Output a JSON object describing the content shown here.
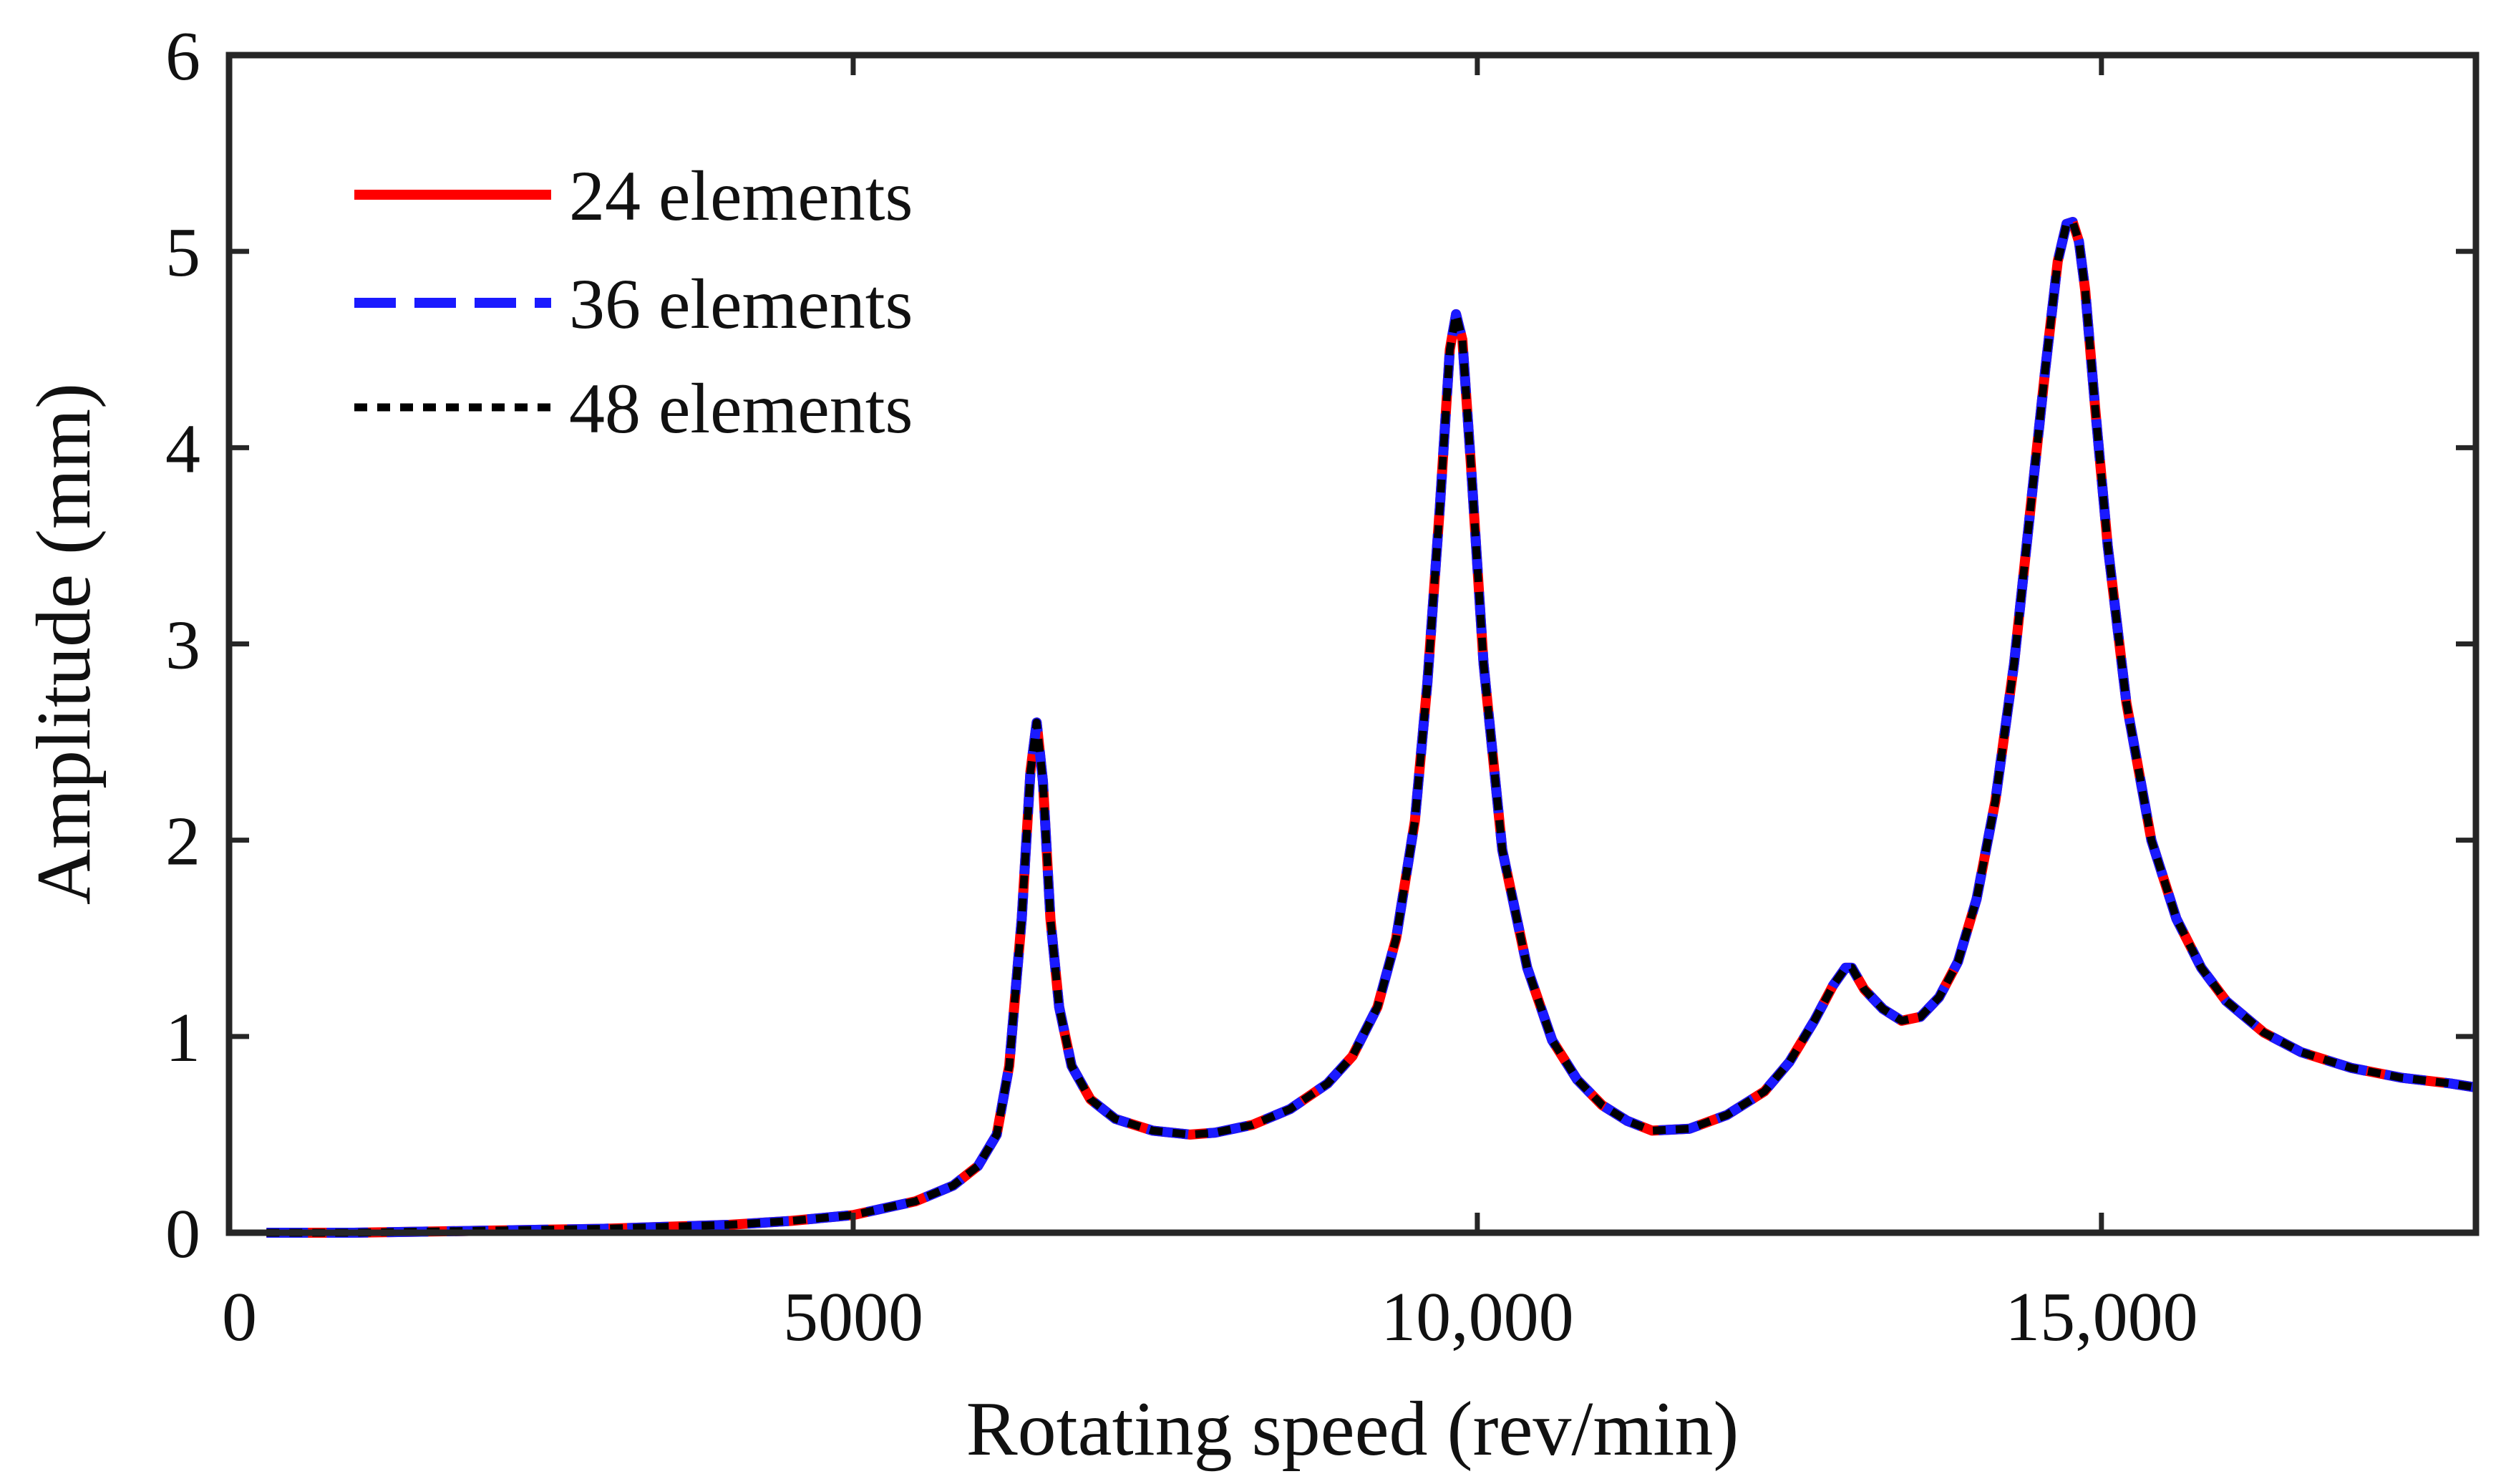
{
  "chart_data": {
    "type": "line",
    "title": "",
    "xlabel": "Rotating speed (rev/min)",
    "ylabel": "Amplitude (mm)",
    "xlim": [
      0,
      18000
    ],
    "ylim": [
      0,
      6
    ],
    "grid": false,
    "legend_position": "top-left",
    "xticks": [
      0,
      5000,
      10000,
      15000
    ],
    "xtick_labels": [
      "0",
      "5000",
      "10,000",
      "15,000"
    ],
    "yticks": [
      0,
      1,
      2,
      3,
      4,
      5,
      6
    ],
    "ytick_labels": [
      "0",
      "1",
      "2",
      "3",
      "4",
      "5",
      "6"
    ],
    "x": [
      300,
      1000,
      2000,
      3000,
      4000,
      4500,
      5000,
      5500,
      5800,
      6000,
      6150,
      6250,
      6350,
      6420,
      6470,
      6520,
      6580,
      6650,
      6750,
      6900,
      7100,
      7400,
      7700,
      7900,
      8200,
      8500,
      8800,
      9000,
      9200,
      9350,
      9500,
      9600,
      9700,
      9780,
      9830,
      9880,
      9950,
      10050,
      10200,
      10400,
      10600,
      10800,
      11000,
      11200,
      11400,
      11700,
      12000,
      12300,
      12500,
      12700,
      12850,
      12950,
      13000,
      13100,
      13250,
      13400,
      13550,
      13700,
      13850,
      14000,
      14150,
      14300,
      14450,
      14550,
      14650,
      14720,
      14770,
      14820,
      14870,
      14950,
      15050,
      15200,
      15400,
      15600,
      15800,
      16000,
      16300,
      16600,
      17000,
      17400,
      17800,
      18000
    ],
    "series": [
      {
        "name": "24 elements",
        "color": "#ff0000",
        "dash": "solid",
        "values": [
          0.0,
          0.0,
          0.01,
          0.02,
          0.04,
          0.06,
          0.09,
          0.16,
          0.24,
          0.34,
          0.5,
          0.85,
          1.6,
          2.35,
          2.6,
          2.3,
          1.6,
          1.15,
          0.85,
          0.68,
          0.58,
          0.52,
          0.5,
          0.51,
          0.55,
          0.63,
          0.76,
          0.9,
          1.15,
          1.5,
          2.1,
          2.8,
          3.7,
          4.5,
          4.68,
          4.55,
          3.9,
          2.9,
          1.95,
          1.35,
          0.98,
          0.78,
          0.65,
          0.57,
          0.52,
          0.53,
          0.6,
          0.72,
          0.87,
          1.08,
          1.26,
          1.35,
          1.35,
          1.24,
          1.14,
          1.08,
          1.1,
          1.2,
          1.38,
          1.7,
          2.2,
          2.9,
          3.8,
          4.4,
          4.95,
          5.14,
          5.15,
          5.05,
          4.8,
          4.2,
          3.5,
          2.7,
          2.0,
          1.6,
          1.35,
          1.18,
          1.02,
          0.92,
          0.84,
          0.79,
          0.76,
          0.74
        ]
      },
      {
        "name": "36 elements",
        "color": "#1a1aff",
        "dash": "dashed",
        "values": [
          0.0,
          0.0,
          0.01,
          0.02,
          0.04,
          0.06,
          0.09,
          0.16,
          0.24,
          0.34,
          0.5,
          0.85,
          1.6,
          2.35,
          2.6,
          2.3,
          1.6,
          1.15,
          0.85,
          0.68,
          0.58,
          0.52,
          0.5,
          0.51,
          0.55,
          0.63,
          0.76,
          0.9,
          1.15,
          1.5,
          2.1,
          2.8,
          3.7,
          4.5,
          4.68,
          4.55,
          3.9,
          2.9,
          1.95,
          1.35,
          0.98,
          0.78,
          0.65,
          0.57,
          0.52,
          0.53,
          0.6,
          0.72,
          0.87,
          1.08,
          1.26,
          1.35,
          1.35,
          1.24,
          1.14,
          1.08,
          1.1,
          1.2,
          1.38,
          1.7,
          2.2,
          2.9,
          3.8,
          4.4,
          4.95,
          5.14,
          5.15,
          5.05,
          4.8,
          4.2,
          3.5,
          2.7,
          2.0,
          1.6,
          1.35,
          1.18,
          1.02,
          0.92,
          0.84,
          0.79,
          0.76,
          0.74
        ]
      },
      {
        "name": "48 elements",
        "color": "#000000",
        "dash": "dotted",
        "values": [
          0.0,
          0.0,
          0.01,
          0.02,
          0.04,
          0.06,
          0.09,
          0.16,
          0.24,
          0.34,
          0.5,
          0.85,
          1.6,
          2.35,
          2.6,
          2.3,
          1.6,
          1.15,
          0.85,
          0.68,
          0.58,
          0.52,
          0.5,
          0.51,
          0.55,
          0.63,
          0.76,
          0.9,
          1.15,
          1.5,
          2.1,
          2.8,
          3.7,
          4.5,
          4.68,
          4.55,
          3.9,
          2.9,
          1.95,
          1.35,
          0.98,
          0.78,
          0.65,
          0.57,
          0.52,
          0.53,
          0.6,
          0.72,
          0.87,
          1.08,
          1.26,
          1.35,
          1.35,
          1.24,
          1.14,
          1.08,
          1.1,
          1.2,
          1.38,
          1.7,
          2.2,
          2.9,
          3.8,
          4.4,
          4.95,
          5.14,
          5.15,
          5.05,
          4.8,
          4.2,
          3.5,
          2.7,
          2.0,
          1.6,
          1.35,
          1.18,
          1.02,
          0.92,
          0.84,
          0.79,
          0.76,
          0.74
        ]
      }
    ]
  }
}
